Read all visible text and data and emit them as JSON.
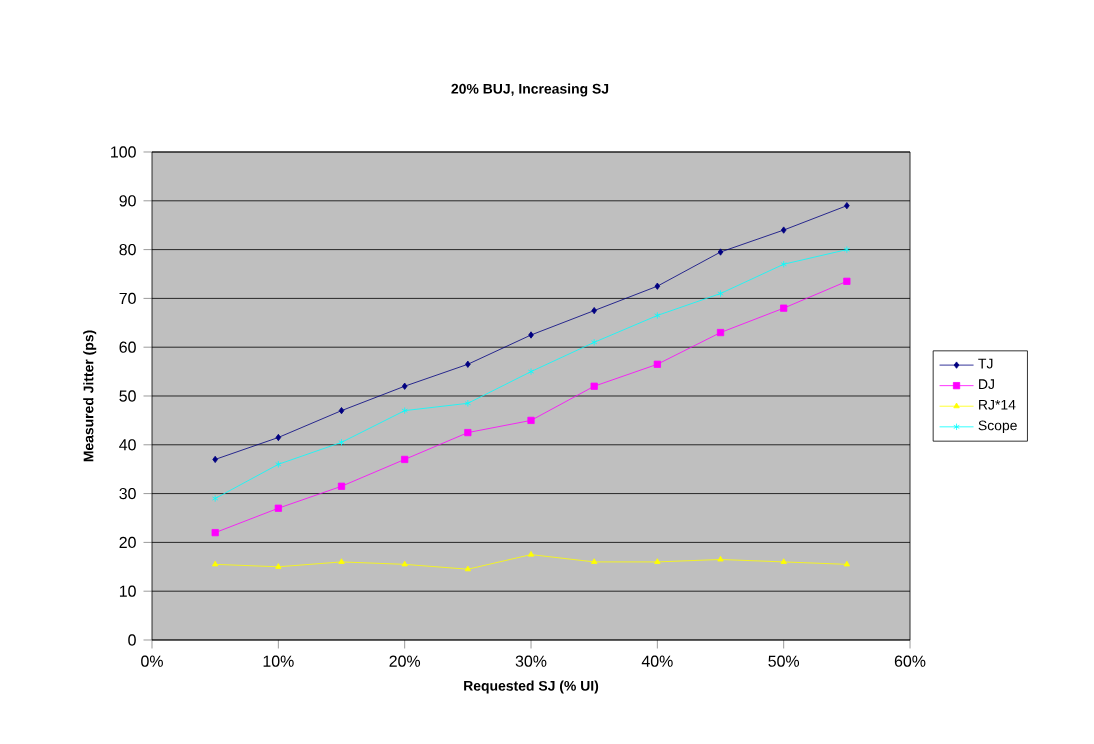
{
  "chart_data": {
    "type": "line",
    "title": "20%  BUJ, Increasing SJ",
    "xlabel": "Requested SJ (% UI)",
    "ylabel": "Measured Jitter (ps)",
    "x": [
      5,
      10,
      15,
      20,
      25,
      30,
      35,
      40,
      45,
      50,
      55
    ],
    "series": [
      {
        "name": "TJ",
        "color": "#000080",
        "marker": "diamond",
        "values": [
          37,
          41.5,
          47,
          52,
          56.5,
          62.5,
          67.5,
          72.5,
          79.5,
          84,
          89
        ]
      },
      {
        "name": "DJ",
        "color": "#ff00ff",
        "marker": "square",
        "values": [
          22,
          27,
          31.5,
          37,
          42.5,
          45,
          52,
          56.5,
          63,
          68,
          73.5
        ]
      },
      {
        "name": "RJ*14",
        "color": "#ffff00",
        "marker": "triangle",
        "values": [
          15.5,
          15,
          16,
          15.5,
          14.5,
          17.5,
          16,
          16,
          16.5,
          16,
          15.5
        ]
      },
      {
        "name": "Scope",
        "color": "#00ffff",
        "marker": "cross",
        "values": [
          29,
          36,
          40.5,
          47,
          48.5,
          55,
          61,
          66.5,
          71,
          77,
          80
        ]
      }
    ],
    "xlim": [
      0,
      60
    ],
    "xticks": [
      {
        "value": 0,
        "label": "0%"
      },
      {
        "value": 10,
        "label": "10%"
      },
      {
        "value": 20,
        "label": "20%"
      },
      {
        "value": 30,
        "label": "30%"
      },
      {
        "value": 40,
        "label": "40%"
      },
      {
        "value": 50,
        "label": "50%"
      },
      {
        "value": 60,
        "label": "60%"
      }
    ],
    "ylim": [
      0,
      100
    ],
    "yticks": [
      0,
      10,
      20,
      30,
      40,
      50,
      60,
      70,
      80,
      90,
      100
    ],
    "grid": "y",
    "legend": "right",
    "line_style": "solid"
  }
}
